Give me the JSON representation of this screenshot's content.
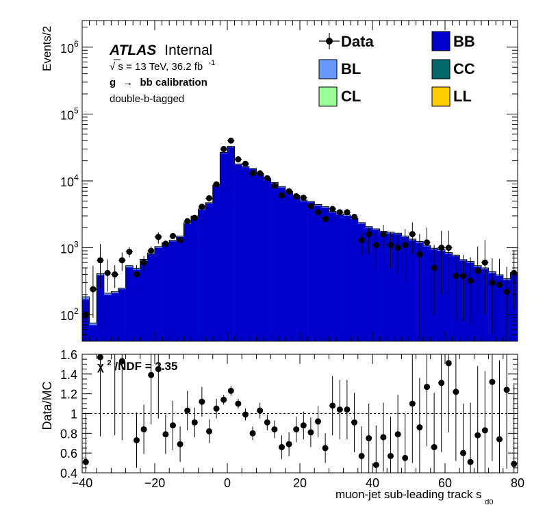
{
  "chart_data": [
    {
      "type": "histogram",
      "title": "",
      "ylabel": "Events/2",
      "yscale": "log",
      "ylim": [
        40,
        2500000
      ],
      "xlim": [
        -40,
        80
      ],
      "bin_width": 2,
      "y_ticks": [
        {
          "value": 100,
          "base": "10",
          "exp": "2"
        },
        {
          "value": 1000,
          "base": "10",
          "exp": "3"
        },
        {
          "value": 10000,
          "base": "10",
          "exp": "4"
        },
        {
          "value": 100000,
          "base": "10",
          "exp": "5"
        },
        {
          "value": 1000000,
          "base": "10",
          "exp": "6"
        }
      ],
      "annotations": {
        "atlas": "ATLAS",
        "internal": "Internal",
        "energy_sqrt": "√",
        "energy_s": "s",
        "energy_text": " = 13 TeV, 36.2 fb",
        "energy_exp": "-1",
        "process_g": "g",
        "process_arrow": "→",
        "process_rest": "bb calibration",
        "selection": "double-b-tagged"
      },
      "legend": [
        {
          "label": "Data",
          "kind": "marker",
          "color": "#000000"
        },
        {
          "label": "BB",
          "kind": "box",
          "color": "#0000cc"
        },
        {
          "label": "BL",
          "kind": "box",
          "color": "#6699ff"
        },
        {
          "label": "CC",
          "kind": "box",
          "color": "#006666"
        },
        {
          "label": "CL",
          "kind": "box",
          "color": "#99ff99"
        },
        {
          "label": "LL",
          "kind": "box",
          "color": "#ffcc00"
        }
      ],
      "bin_centers": [
        -39,
        -37,
        -35,
        -33,
        -31,
        -29,
        -27,
        -25,
        -23,
        -21,
        -19,
        -17,
        -15,
        -13,
        -11,
        -9,
        -7,
        -5,
        -3,
        -1,
        1,
        3,
        5,
        7,
        9,
        11,
        13,
        15,
        17,
        19,
        21,
        23,
        25,
        27,
        29,
        31,
        33,
        35,
        37,
        39,
        41,
        43,
        45,
        47,
        49,
        51,
        53,
        55,
        57,
        59,
        61,
        63,
        65,
        67,
        69,
        71,
        73,
        75,
        77,
        79
      ],
      "mc_bb": [
        170,
        70,
        390,
        200,
        210,
        240,
        510,
        470,
        640,
        800,
        1000,
        1150,
        1250,
        1450,
        2300,
        2900,
        3700,
        4600,
        8400,
        26000,
        32000,
        17500,
        16000,
        15000,
        12800,
        10500,
        9200,
        8000,
        6800,
        5900,
        5000,
        4800,
        4300,
        4000,
        3400,
        3100,
        3000,
        2700,
        2300,
        2000,
        1850,
        1700,
        1650,
        1600,
        1450,
        1300,
        1200,
        1050,
        950,
        900,
        820,
        750,
        640,
        600,
        520,
        480,
        420,
        380,
        330,
        410
      ],
      "mc_bl": [
        15,
        5,
        20,
        10,
        10,
        10,
        30,
        25,
        30,
        35,
        40,
        40,
        45,
        50,
        70,
        80,
        100,
        120,
        200,
        700,
        800,
        450,
        400,
        380,
        330,
        280,
        250,
        220,
        190,
        170,
        150,
        140,
        130,
        120,
        110,
        100,
        100,
        90,
        80,
        70,
        65,
        60,
        58,
        55,
        50,
        45,
        42,
        38,
        35,
        33,
        30,
        28,
        25,
        23,
        20,
        19,
        17,
        15,
        14,
        16
      ],
      "data": [
        100,
        240,
        650,
        420,
        400,
        650,
        870,
        400,
        600,
        900,
        1450,
        1150,
        1500,
        1300,
        2500,
        2800,
        4100,
        5500,
        8900,
        30000,
        40000,
        21000,
        18000,
        13000,
        13000,
        11000,
        8500,
        6100,
        7000,
        5900,
        5600,
        4200,
        3400,
        2700,
        3800,
        3400,
        3400,
        2900,
        1300,
        1600,
        1100,
        1600,
        1100,
        1000,
        1100,
        1600,
        800,
        1200,
        500,
        1000,
        1000,
        380,
        380,
        320,
        450,
        600,
        300,
        280,
        220,
        420
      ],
      "data_err_hi": [
        400,
        300,
        480,
        250,
        150,
        200,
        150,
        150,
        150,
        150,
        250,
        100,
        100,
        100,
        200,
        150,
        150,
        200,
        300,
        500,
        500,
        400,
        300,
        250,
        300,
        300,
        250,
        200,
        300,
        200,
        200,
        200,
        200,
        200,
        200,
        200,
        200,
        200,
        400,
        400,
        600,
        600,
        600,
        600,
        800,
        800,
        800,
        800,
        600,
        800,
        800,
        400,
        400,
        400,
        600,
        700,
        400,
        400,
        300,
        500
      ],
      "data_err_lo": [
        80,
        150,
        400,
        200,
        150,
        200,
        150,
        150,
        150,
        150,
        300,
        100,
        100,
        100,
        200,
        150,
        150,
        200,
        300,
        500,
        500,
        400,
        300,
        250,
        300,
        300,
        250,
        200,
        300,
        200,
        200,
        200,
        200,
        200,
        200,
        200,
        200,
        200,
        500,
        800,
        600,
        600,
        600,
        600,
        800,
        800,
        800,
        800,
        400,
        800,
        800,
        300,
        300,
        250,
        350,
        500,
        250,
        230,
        180,
        300
      ]
    },
    {
      "type": "scatter",
      "title": "",
      "ylabel": "Data/MC",
      "xlabel": "muon-jet sub-leading track s",
      "xlabel_sub": "d0",
      "xlim": [
        -40,
        80
      ],
      "ylim": [
        0.4,
        1.6
      ],
      "x_ticks": [
        -40,
        -20,
        0,
        20,
        40,
        60,
        80
      ],
      "y_ticks": [
        "0.4",
        "0.6",
        "0.8",
        "1",
        "1.2",
        "1.4",
        "1.6"
      ],
      "reference_line": 1,
      "chi2_chi": "χ",
      "chi2_exp": "2",
      "chi2_rest": "/NDF = 2.35",
      "x": [
        -39,
        -35,
        -31,
        -29,
        -25,
        -23,
        -21,
        -19,
        -17,
        -15,
        -13,
        -11,
        -9,
        -7,
        -5,
        -3,
        -1,
        1,
        3,
        5,
        7,
        9,
        11,
        13,
        15,
        17,
        19,
        21,
        23,
        25,
        27,
        29,
        31,
        33,
        35,
        37,
        39,
        41,
        43,
        45,
        47,
        49,
        51,
        53,
        55,
        57,
        59,
        61,
        63,
        65,
        67,
        69,
        71,
        73,
        75,
        77,
        79
      ],
      "y": [
        0.51,
        1.57,
        1.68,
        1.53,
        0.73,
        0.84,
        1.39,
        1.45,
        0.79,
        0.88,
        0.69,
        1.03,
        0.91,
        1.12,
        0.82,
        1.05,
        1.14,
        1.23,
        1.1,
        0.99,
        0.8,
        1.03,
        0.91,
        0.84,
        0.66,
        0.69,
        0.84,
        0.88,
        0.81,
        0.92,
        0.65,
        1.08,
        1.04,
        1.04,
        0.91,
        0.57,
        0.75,
        0.48,
        0.76,
        0.57,
        0.79,
        0.55,
        1.1,
        0.86,
        1.27,
        0.66,
        1.31,
        1.51,
        1.22,
        0.6,
        0.51,
        0.78,
        0.83,
        1.32,
        0.74,
        1.24,
        0.49
      ],
      "err": [
        0.5,
        0.8,
        0.9,
        0.8,
        0.28,
        0.25,
        0.5,
        0.5,
        0.2,
        0.25,
        0.18,
        0.2,
        0.15,
        0.15,
        0.12,
        0.1,
        0.05,
        0.05,
        0.05,
        0.06,
        0.07,
        0.08,
        0.08,
        0.09,
        0.12,
        0.12,
        0.13,
        0.14,
        0.15,
        0.16,
        0.15,
        0.3,
        0.3,
        0.3,
        0.3,
        0.3,
        0.35,
        0.4,
        0.35,
        0.4,
        0.4,
        0.45,
        0.6,
        0.5,
        0.6,
        0.55,
        0.7,
        0.7,
        0.7,
        0.5,
        0.6,
        0.7,
        0.6,
        0.8,
        0.8,
        0.8,
        0.8
      ]
    }
  ]
}
